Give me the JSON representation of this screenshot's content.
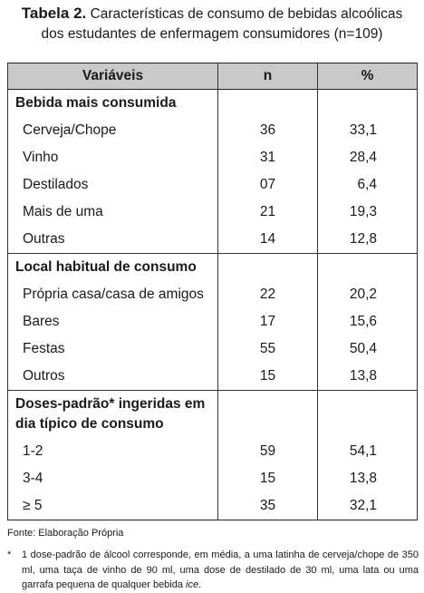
{
  "caption": {
    "label": "Tabela 2.",
    "line1": "Características de consumo de bebidas alcoólicas",
    "line2": "dos estudantes de enfermagem consumidores (n=109)"
  },
  "table": {
    "headers": [
      "Variáveis",
      "n",
      "%"
    ],
    "sections": [
      {
        "title": "Bebida mais consumida",
        "rows": [
          {
            "label": "Cerveja/Chope",
            "n": "36",
            "pct": "33,1"
          },
          {
            "label": "Vinho",
            "n": "31",
            "pct": "28,4"
          },
          {
            "label": "Destilados",
            "n": "07",
            "pct": "6,4"
          },
          {
            "label": "Mais de uma",
            "n": "21",
            "pct": "19,3"
          },
          {
            "label": "Outras",
            "n": "14",
            "pct": "12,8"
          }
        ]
      },
      {
        "title": "Local habitual de consumo",
        "rows": [
          {
            "label": "Própria casa/casa de amigos",
            "n": "22",
            "pct": "20,2"
          },
          {
            "label": "Bares",
            "n": "17",
            "pct": "15,6"
          },
          {
            "label": "Festas",
            "n": "55",
            "pct": "50,4"
          },
          {
            "label": "Outros",
            "n": "15",
            "pct": "13,8"
          }
        ]
      },
      {
        "title_line1": "Doses-padrão* ingeridas em",
        "title_line2": "dia típico de consumo",
        "rows": [
          {
            "label": "1-2",
            "n": "59",
            "pct": "54,1"
          },
          {
            "label": "3-4",
            "n": "15",
            "pct": "13,8"
          },
          {
            "label": "≥ 5",
            "n": "35",
            "pct": "32,1"
          }
        ]
      }
    ]
  },
  "source": "Fonte: Elaboração Própria",
  "footnote": {
    "marker": "*",
    "text_before": "1 dose-padrão de álcool corresponde, em média, a uma latinha de cerveja/chope de 350 ml, uma taça de vinho de 90 ml, uma dose de destilado de 30 ml, uma lata ou uma garrafa pequena de qualquer bebida ",
    "text_italic": "ice",
    "text_after": "."
  }
}
